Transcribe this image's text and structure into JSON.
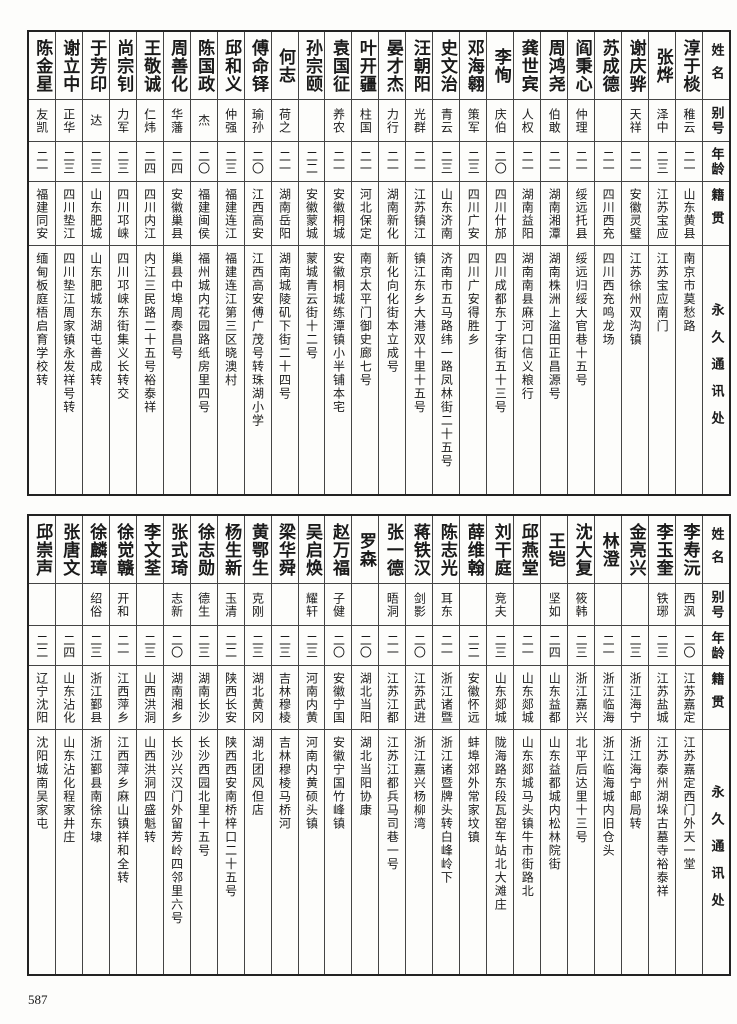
{
  "page_number": "587",
  "headers": {
    "name": "姓名",
    "alias": "别号",
    "age": "年龄",
    "native": "籍贯",
    "address": "永久通讯处"
  },
  "top_table": {
    "rows": [
      {
        "name": "淳于棪",
        "alias": "稚云",
        "age": "二一",
        "native": "山东黄县",
        "address": "南京市莫愁路"
      },
      {
        "name": "张烨",
        "alias": "泽中",
        "age": "二三",
        "native": "江苏宝应",
        "address": "江苏宝应南门"
      },
      {
        "name": "谢庆骅",
        "alias": "天祥",
        "age": "二一",
        "native": "安徽灵璧",
        "address": "江苏徐州双沟镇"
      },
      {
        "name": "苏成德",
        "alias": "",
        "age": "二一",
        "native": "四川西充",
        "address": "四川西充鸣龙场"
      },
      {
        "name": "阎秉心",
        "alias": "仲理",
        "age": "二一",
        "native": "绥远托县",
        "address": "绥远归绥大官巷十五号"
      },
      {
        "name": "周鸿尧",
        "alias": "伯敢",
        "age": "二一",
        "native": "湖南湘潭",
        "address": "湖南株洲上湓田正昌源号"
      },
      {
        "name": "龚世宾",
        "alias": "人权",
        "age": "二一",
        "native": "湖南益阳",
        "address": "湖南南县麻河口信义粮行"
      },
      {
        "name": "李恂",
        "alias": "庆伯",
        "age": "二〇",
        "native": "四川什邡",
        "address": "四川成都东丁字街五十三号"
      },
      {
        "name": "邓海翱",
        "alias": "策军",
        "age": "二三",
        "native": "四川广安",
        "address": "四川广安得胜乡"
      },
      {
        "name": "史文治",
        "alias": "青云",
        "age": "二三",
        "native": "山东济南",
        "address": "济南市五马路纬一路凤林街二十五号"
      },
      {
        "name": "汪朝阳",
        "alias": "光群",
        "age": "二一",
        "native": "江苏镇江",
        "address": "镇江东乡大港双十里十五号"
      },
      {
        "name": "晏才杰",
        "alias": "力行",
        "age": "二一",
        "native": "湖南新化",
        "address": "新化向化街本立成号"
      },
      {
        "name": "叶开疆",
        "alias": "柱国",
        "age": "二一",
        "native": "河北保定",
        "address": "南京太平门御史廊七号"
      },
      {
        "name": "袁国征",
        "alias": "养农",
        "age": "二一",
        "native": "安徽桐城",
        "address": "安徽桐城练潭镇小半铺本宅"
      },
      {
        "name": "孙宗颐",
        "alias": "",
        "age": "二二",
        "native": "安徽蒙城",
        "address": "蒙城青云街十二号"
      },
      {
        "name": "何志",
        "alias": "荷之",
        "age": "二一",
        "native": "湖南岳阳",
        "address": "湖南城陵矶下街二十四号"
      },
      {
        "name": "傅命铎",
        "alias": "瑜孙",
        "age": "二〇",
        "native": "江西高安",
        "address": "江西高安傅广茂号转珠湖小学"
      },
      {
        "name": "邱和义",
        "alias": "仲强",
        "age": "二三",
        "native": "福建连江",
        "address": "福建连江第三区晓澳村"
      },
      {
        "name": "陈国政",
        "alias": "杰",
        "age": "二〇",
        "native": "福建闽侯",
        "address": "福州城内花园路纸房里四号"
      },
      {
        "name": "周善化",
        "alias": "华藩",
        "age": "二四",
        "native": "安徽巢县",
        "address": "巢县中埠周泰昌号"
      },
      {
        "name": "王敬诚",
        "alias": "仁炜",
        "age": "二四",
        "native": "四川内江",
        "address": "内江三民路二十五号裕泰祥"
      },
      {
        "name": "尚宗钊",
        "alias": "力军",
        "age": "二三",
        "native": "四川邛崃",
        "address": "四川邛崃东街集义长转交"
      },
      {
        "name": "于芳印",
        "alias": "达",
        "age": "二三",
        "native": "山东肥城",
        "address": "山东肥城东湖屯善成转"
      },
      {
        "name": "谢立中",
        "alias": "正华",
        "age": "二三",
        "native": "四川垫江",
        "address": "四川垫江周家镇永发祥号转"
      },
      {
        "name": "陈金星",
        "alias": "友凯",
        "age": "二一",
        "native": "福建同安",
        "address": "缅甸板庭梧启育学校转"
      }
    ]
  },
  "bottom_table": {
    "rows": [
      {
        "name": "李寿沅",
        "alias": "西沨",
        "age": "二〇",
        "native": "江苏嘉定",
        "address": "江苏嘉定西门外天一堂"
      },
      {
        "name": "李玉奎",
        "alias": "铁琊",
        "age": "二三",
        "native": "江苏盐城",
        "address": "江苏泰州湖垛古墓寺裕泰祥"
      },
      {
        "name": "金亮兴",
        "alias": "",
        "age": "二三",
        "native": "浙江海宁",
        "address": "浙江海宁邮局转"
      },
      {
        "name": "林澄",
        "alias": "",
        "age": "二一",
        "native": "浙江临海",
        "address": "浙江临海城内旧仓头"
      },
      {
        "name": "沈大复",
        "alias": "筱韩",
        "age": "二三",
        "native": "浙江嘉兴",
        "address": "北平后达里十三号"
      },
      {
        "name": "王铠",
        "alias": "坚如",
        "age": "二四",
        "native": "山东益都",
        "address": "山东益都城内松林院街"
      },
      {
        "name": "邱燕堂",
        "alias": "",
        "age": "二一",
        "native": "山东郯城",
        "address": "山东郯城马头镇牛市街路北"
      },
      {
        "name": "刘干庭",
        "alias": "竞夫",
        "age": "二三",
        "native": "山东郯城",
        "address": "陇海路东段瓦窑车站北大滩庄"
      },
      {
        "name": "薛维翰",
        "alias": "",
        "age": "二二",
        "native": "安徽怀远",
        "address": "蚌埠郊外常家坟镇"
      },
      {
        "name": "陈志光",
        "alias": "耳东",
        "age": "二一",
        "native": "浙江诸暨",
        "address": "浙江诸暨牌头转白峰岭下"
      },
      {
        "name": "蒋铁汉",
        "alias": "剑影",
        "age": "二〇",
        "native": "江苏武进",
        "address": "浙江嘉兴杨柳湾"
      },
      {
        "name": "张一德",
        "alias": "晤洞",
        "age": "二一",
        "native": "江苏江都",
        "address": "江苏江都兵马司巷一号"
      },
      {
        "name": "罗森",
        "alias": "",
        "age": "二〇",
        "native": "湖北当阳",
        "address": "湖北当阳协康"
      },
      {
        "name": "赵万福",
        "alias": "子健",
        "age": "二〇",
        "native": "安徽宁国",
        "address": "安徽宁国竹峰镇"
      },
      {
        "name": "吴启焕",
        "alias": "耀轩",
        "age": "二三",
        "native": "河南内黄",
        "address": "河南内黄硕头镇"
      },
      {
        "name": "梁华舜",
        "alias": "",
        "age": "二三",
        "native": "吉林穆棱",
        "address": "吉林穆棱马桥河"
      },
      {
        "name": "黄鄂生",
        "alias": "克刚",
        "age": "二三",
        "native": "湖北黄冈",
        "address": "湖北团风但店"
      },
      {
        "name": "杨生新",
        "alias": "玉清",
        "age": "二二",
        "native": "陕西长安",
        "address": "陕西西安南桥梓口二十五号"
      },
      {
        "name": "徐志勋",
        "alias": "德生",
        "age": "二三",
        "native": "湖南长沙",
        "address": "长沙西园北里十五号"
      },
      {
        "name": "张式琦",
        "alias": "志新",
        "age": "二〇",
        "native": "湖南湘乡",
        "address": "长沙兴汉门外留芳岭四邻里六号"
      },
      {
        "name": "李文荃",
        "alias": "",
        "age": "二三",
        "native": "山西洪洞",
        "address": "山西洪洞四盛魁转"
      },
      {
        "name": "徐觉赣",
        "alias": "开和",
        "age": "二一",
        "native": "江西萍乡",
        "address": "江西萍乡麻山镇祥和全转"
      },
      {
        "name": "徐麟璋",
        "alias": "绍俗",
        "age": "二三",
        "native": "浙江鄞县",
        "address": "浙江鄞县南徐东埭"
      },
      {
        "name": "张唐文",
        "alias": "",
        "age": "二四",
        "native": "山东沾化",
        "address": "山东沾化程家井庄"
      },
      {
        "name": "邱崇声",
        "alias": "",
        "age": "二二",
        "native": "辽宁沈阳",
        "address": "沈阳城南吴家屯"
      }
    ]
  }
}
